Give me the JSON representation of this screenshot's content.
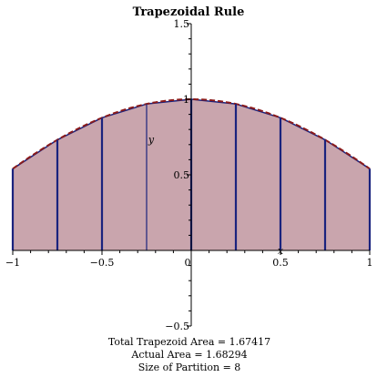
{
  "chart_data": {
    "type": "area",
    "title": "Trapezoidal Rule",
    "xlabel": "x",
    "ylabel": "y",
    "xlim": [
      -1,
      1
    ],
    "ylim": [
      -0.5,
      1.5
    ],
    "x_ticks": [
      {
        "value": -1,
        "label": "−1"
      },
      {
        "value": -0.5,
        "label": "−0.5"
      },
      {
        "value": 0,
        "label": "0"
      },
      {
        "value": 0.5,
        "label": "0.5"
      },
      {
        "value": 1,
        "label": "1"
      }
    ],
    "y_ticks": [
      {
        "value": -0.5,
        "label": "−0.5"
      },
      {
        "value": 0.5,
        "label": "0.5"
      },
      {
        "value": 1,
        "label": "1"
      },
      {
        "value": 1.5,
        "label": "1.5"
      }
    ],
    "partition_x": [
      -1,
      -0.75,
      -0.5,
      -0.25,
      0,
      0.25,
      0.5,
      0.75,
      1
    ],
    "partition_y": [
      0.5403,
      0.7317,
      0.8776,
      0.9689,
      1.0,
      0.9689,
      0.8776,
      0.7317,
      0.5403
    ],
    "curve": "cos(x)",
    "colors": {
      "fill": "#c9a5ad",
      "curve": "#8b1a1a",
      "segments": "#1a237e",
      "axis": "#000000"
    },
    "grid": false
  },
  "footer": {
    "total_area": "Total Trapezoid Area = 1.67417",
    "actual_area": "Actual Area = 1.68294",
    "partition_size": "Size of Partition = 8"
  }
}
